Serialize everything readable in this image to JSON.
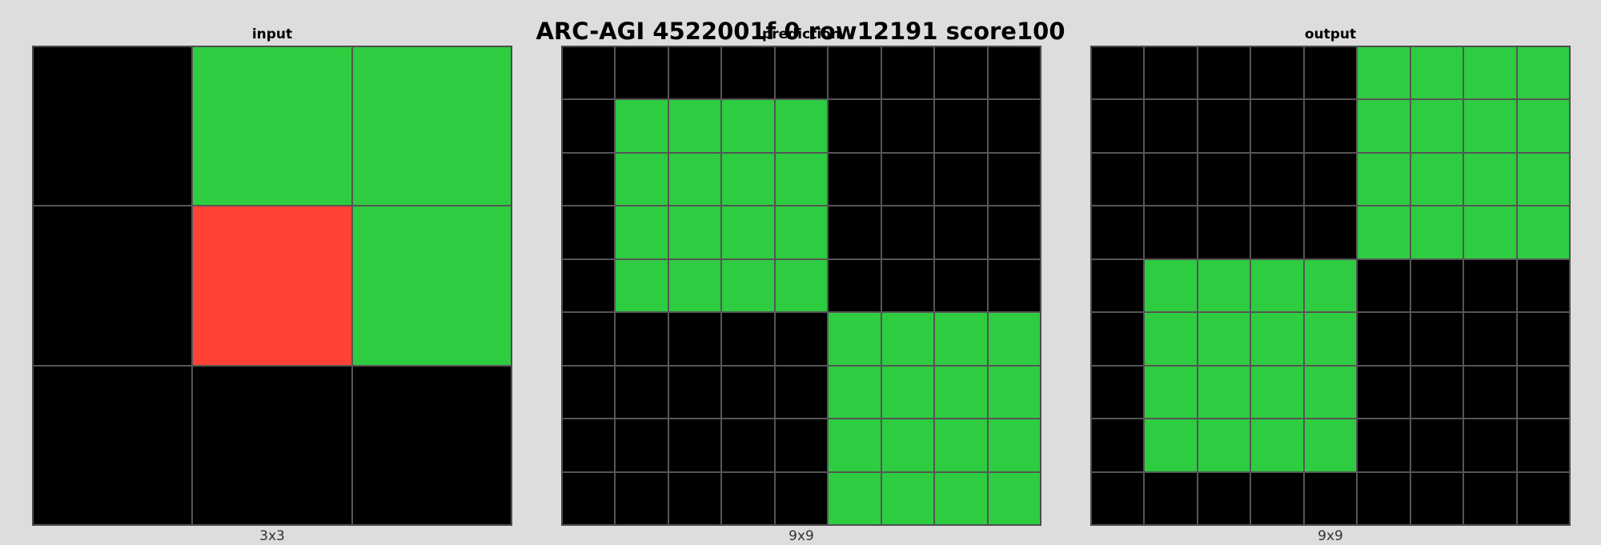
{
  "title": "ARC-AGI 4522001f 0 row12191 score100",
  "palette": {
    "0": "#000000",
    "2": "#ff4136",
    "3": "#2ecc40"
  },
  "panels": [
    {
      "label": "input",
      "size": "3x3",
      "grid": [
        [
          0,
          3,
          3
        ],
        [
          0,
          2,
          3
        ],
        [
          0,
          0,
          0
        ]
      ]
    },
    {
      "label": "prediction",
      "size": "9x9",
      "grid": [
        [
          0,
          0,
          0,
          0,
          0,
          0,
          0,
          0,
          0
        ],
        [
          0,
          3,
          3,
          3,
          3,
          0,
          0,
          0,
          0
        ],
        [
          0,
          3,
          3,
          3,
          3,
          0,
          0,
          0,
          0
        ],
        [
          0,
          3,
          3,
          3,
          3,
          0,
          0,
          0,
          0
        ],
        [
          0,
          3,
          3,
          3,
          3,
          0,
          0,
          0,
          0
        ],
        [
          0,
          0,
          0,
          0,
          0,
          3,
          3,
          3,
          3
        ],
        [
          0,
          0,
          0,
          0,
          0,
          3,
          3,
          3,
          3
        ],
        [
          0,
          0,
          0,
          0,
          0,
          3,
          3,
          3,
          3
        ],
        [
          0,
          0,
          0,
          0,
          0,
          3,
          3,
          3,
          3
        ]
      ]
    },
    {
      "label": "output",
      "size": "9x9",
      "grid": [
        [
          0,
          0,
          0,
          0,
          0,
          3,
          3,
          3,
          3
        ],
        [
          0,
          0,
          0,
          0,
          0,
          3,
          3,
          3,
          3
        ],
        [
          0,
          0,
          0,
          0,
          0,
          3,
          3,
          3,
          3
        ],
        [
          0,
          0,
          0,
          0,
          0,
          3,
          3,
          3,
          3
        ],
        [
          0,
          3,
          3,
          3,
          3,
          0,
          0,
          0,
          0
        ],
        [
          0,
          3,
          3,
          3,
          3,
          0,
          0,
          0,
          0
        ],
        [
          0,
          3,
          3,
          3,
          3,
          0,
          0,
          0,
          0
        ],
        [
          0,
          3,
          3,
          3,
          3,
          0,
          0,
          0,
          0
        ],
        [
          0,
          0,
          0,
          0,
          0,
          0,
          0,
          0,
          0
        ]
      ]
    }
  ]
}
